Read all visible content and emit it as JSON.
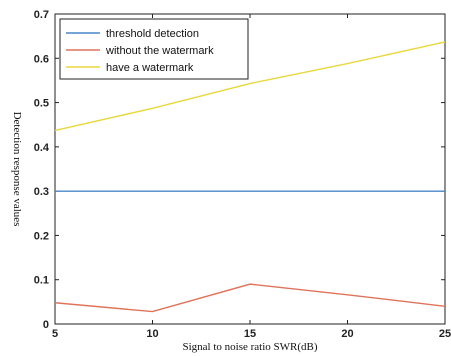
{
  "chart_data": {
    "type": "line",
    "xlabel": "Signal to noise ratio SWR(dB)",
    "ylabel": "Detection response values",
    "xlim": [
      5,
      25
    ],
    "ylim": [
      0,
      0.7
    ],
    "xticks": [
      5,
      10,
      15,
      20,
      25
    ],
    "yticks": [
      0,
      0.1,
      0.2,
      0.3,
      0.4,
      0.5,
      0.6,
      0.7
    ],
    "x": [
      5,
      10,
      15,
      20,
      25
    ],
    "grid": false,
    "legend_position": "top-left",
    "series": [
      {
        "name": "threshold detection",
        "color": "#4a86c8",
        "values": [
          0.3,
          0.3,
          0.3,
          0.3,
          0.3
        ]
      },
      {
        "name": "without the watermark",
        "color": "#e0735a",
        "values": [
          0.048,
          0.028,
          0.09,
          0.066,
          0.04
        ]
      },
      {
        "name": "have a watermark",
        "color": "#e8d83c",
        "values": [
          0.437,
          0.487,
          0.543,
          0.588,
          0.637
        ]
      }
    ]
  }
}
